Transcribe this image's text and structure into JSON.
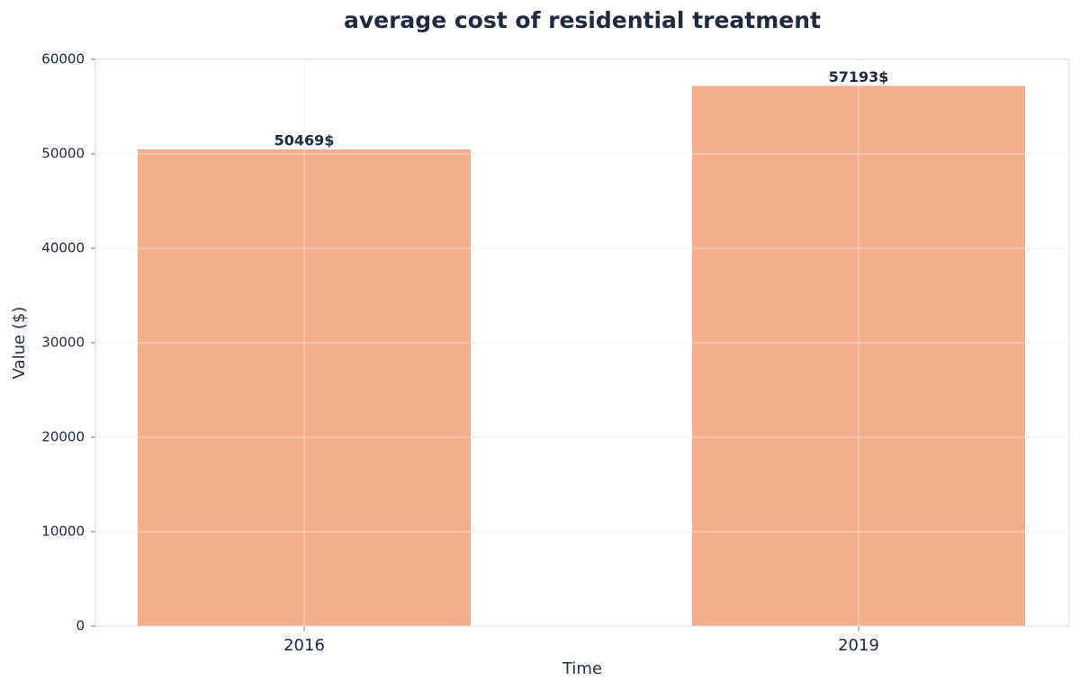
{
  "chart_data": {
    "type": "bar",
    "title": "average cost of residential treatment",
    "x_label": "Time",
    "y_label": "Value ($)",
    "categories": [
      "2016",
      "2019"
    ],
    "values": [
      50469,
      57193
    ],
    "value_labels": [
      "50469$",
      "57193$"
    ],
    "color": "#f5ae8a",
    "ylim": [
      0,
      60000
    ],
    "yticks": [
      0,
      10000,
      20000,
      30000,
      40000,
      50000,
      60000
    ],
    "grid": true
  }
}
